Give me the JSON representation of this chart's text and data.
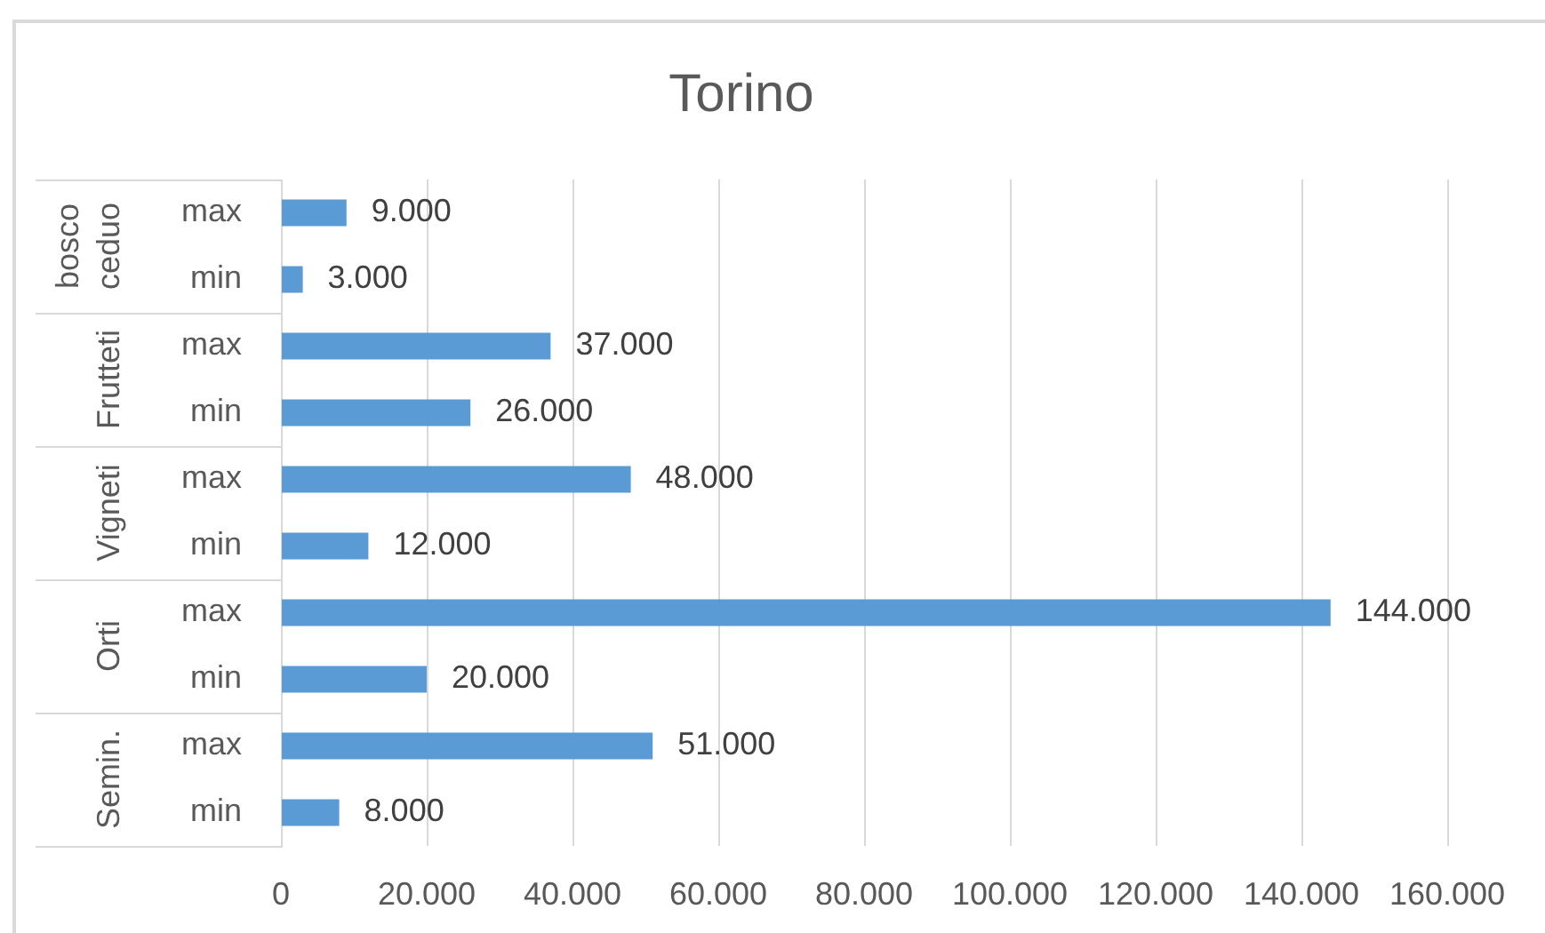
{
  "chart_data": {
    "type": "bar",
    "orientation": "horizontal",
    "title": "Torino",
    "categories": [
      "max",
      "min",
      "max",
      "min",
      "max",
      "min",
      "max",
      "min",
      "max",
      "min"
    ],
    "values": [
      9000,
      3000,
      37000,
      26000,
      48000,
      12000,
      144000,
      20000,
      51000,
      8000
    ],
    "value_labels": [
      "9.000",
      "3.000",
      "37.000",
      "26.000",
      "48.000",
      "12.000",
      "144.000",
      "20.000",
      "51.000",
      "8.000"
    ],
    "color": "#5b9bd5",
    "xlim": [
      0,
      160000
    ],
    "xticks": [
      0,
      {
        "value": 20000,
        "label": "20.000"
      },
      {
        "value": 40000,
        "label": "40.000"
      },
      {
        "value": 60000,
        "label": "60.000"
      },
      {
        "value": 80000,
        "label": "80.000"
      },
      {
        "value": 100000,
        "label": "100.000"
      },
      {
        "value": 120000,
        "label": "120.000"
      },
      {
        "value": 140000,
        "label": "140.000"
      },
      {
        "value": 160000,
        "label": "160.000"
      }
    ],
    "grid": "x",
    "annotations": [
      "bosco ceduo",
      "Frutteti",
      "Vigneti",
      "Orti",
      "Semin."
    ]
  }
}
